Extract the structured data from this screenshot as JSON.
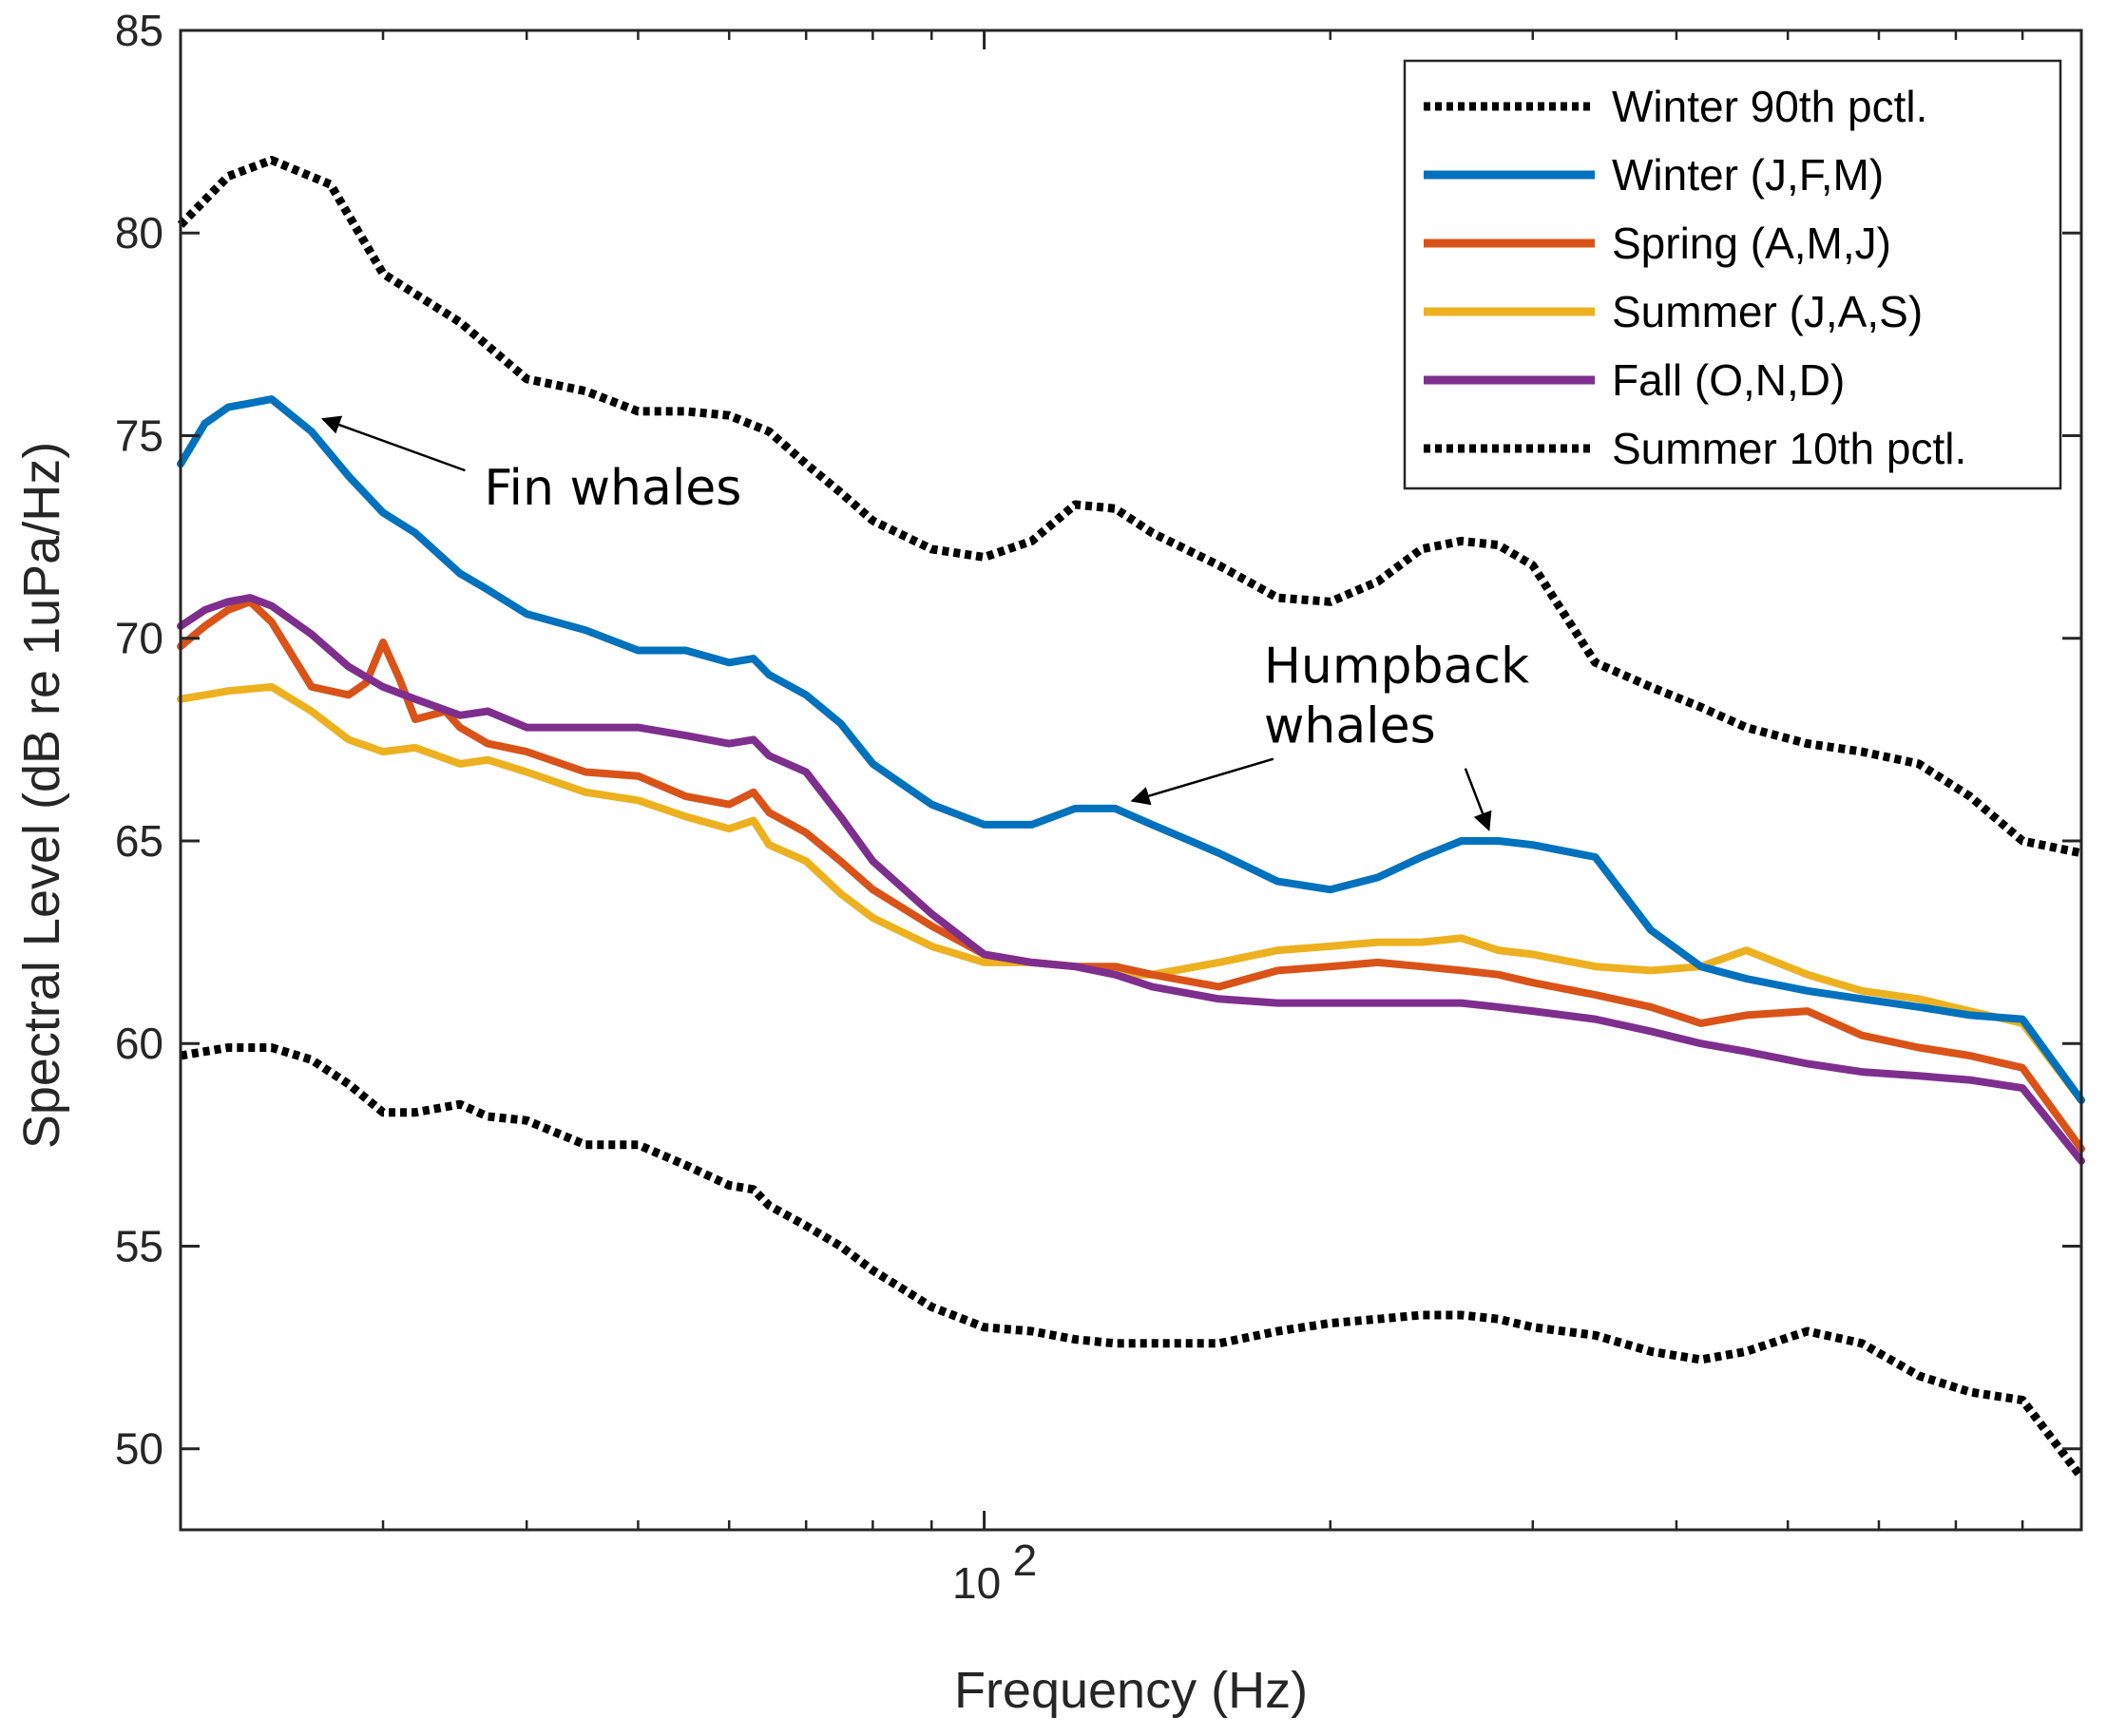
{
  "chart_data": {
    "type": "line",
    "title": "",
    "xlabel": "Frequency (Hz)",
    "ylabel": "Spectral Level (dB re 1uPa/Hz)",
    "xscale": "log",
    "xlim": [
      20,
      900
    ],
    "ylim": [
      48,
      85
    ],
    "grid": false,
    "legend_position": "top-right",
    "x_tick_labels": [
      {
        "value": 100,
        "base": "10",
        "exponent": "2"
      }
    ],
    "y_ticks": [
      50,
      55,
      60,
      65,
      70,
      75,
      80,
      85
    ],
    "colors": {
      "axes": "#262626",
      "black": "#000000",
      "winter": "#0072BD",
      "spring": "#D95319",
      "summer": "#EDB120",
      "fall": "#7E2F8E"
    },
    "series": [
      {
        "name": "Winter 90th pctl.",
        "style": "dotted",
        "color": "#000000",
        "x": [
          20,
          22,
          24,
          27,
          30,
          35,
          40,
          45,
          50,
          55,
          60,
          65,
          70,
          75,
          80,
          90,
          100,
          110,
          120,
          130,
          140,
          160,
          180,
          200,
          220,
          240,
          260,
          280,
          300,
          340,
          380,
          420,
          460,
          520,
          580,
          650,
          720,
          800,
          900
        ],
        "y": [
          80.2,
          81.4,
          81.8,
          81.2,
          79.0,
          77.8,
          76.4,
          76.1,
          75.6,
          75.6,
          75.5,
          75.1,
          74.3,
          73.6,
          72.9,
          72.2,
          72.0,
          72.4,
          73.3,
          73.2,
          72.6,
          71.8,
          71.0,
          70.9,
          71.4,
          72.2,
          72.4,
          72.3,
          71.8,
          69.4,
          68.8,
          68.3,
          67.8,
          67.4,
          67.2,
          66.9,
          66.1,
          65.0,
          64.7
        ]
      },
      {
        "name": "Winter (J,F,M)",
        "style": "solid",
        "color": "#0072BD",
        "x": [
          20,
          21,
          22,
          24,
          26,
          28,
          30,
          32,
          35,
          37,
          40,
          45,
          50,
          55,
          60,
          63,
          65,
          70,
          75,
          80,
          90,
          100,
          110,
          120,
          130,
          140,
          160,
          180,
          200,
          220,
          240,
          260,
          280,
          300,
          340,
          380,
          420,
          460,
          520,
          580,
          650,
          720,
          800,
          900
        ],
        "y": [
          74.3,
          75.3,
          75.7,
          75.9,
          75.1,
          74.0,
          73.1,
          72.6,
          71.6,
          71.2,
          70.6,
          70.2,
          69.7,
          69.7,
          69.4,
          69.5,
          69.1,
          68.6,
          67.9,
          66.9,
          65.9,
          65.4,
          65.4,
          65.8,
          65.8,
          65.4,
          64.7,
          64.0,
          63.8,
          64.1,
          64.6,
          65.0,
          65.0,
          64.9,
          64.6,
          62.8,
          61.9,
          61.6,
          61.3,
          61.1,
          60.9,
          60.7,
          60.6,
          58.6
        ]
      },
      {
        "name": "Spring (A,M,J)",
        "style": "solid",
        "color": "#D95319",
        "x": [
          20,
          21,
          22,
          23,
          24,
          26,
          28,
          29,
          30,
          31,
          32,
          34,
          35,
          37,
          40,
          45,
          50,
          55,
          60,
          63,
          65,
          70,
          75,
          80,
          90,
          100,
          110,
          120,
          130,
          140,
          160,
          180,
          200,
          220,
          240,
          260,
          280,
          300,
          340,
          380,
          420,
          460,
          520,
          580,
          650,
          720,
          800,
          900
        ],
        "y": [
          69.8,
          70.3,
          70.7,
          70.9,
          70.4,
          68.8,
          68.6,
          68.9,
          69.9,
          69.0,
          68.0,
          68.2,
          67.8,
          67.4,
          67.2,
          66.7,
          66.6,
          66.1,
          65.9,
          66.2,
          65.7,
          65.2,
          64.5,
          63.8,
          62.9,
          62.2,
          62.0,
          61.9,
          61.9,
          61.7,
          61.4,
          61.8,
          61.9,
          62.0,
          61.9,
          61.8,
          61.7,
          61.5,
          61.2,
          60.9,
          60.5,
          60.7,
          60.8,
          60.2,
          59.9,
          59.7,
          59.4,
          57.4
        ]
      },
      {
        "name": "Summer (J,A,S)",
        "style": "solid",
        "color": "#EDB120",
        "x": [
          20,
          21,
          22,
          24,
          26,
          28,
          30,
          32,
          35,
          37,
          40,
          45,
          50,
          55,
          60,
          63,
          65,
          70,
          75,
          80,
          90,
          100,
          110,
          120,
          130,
          140,
          160,
          180,
          200,
          220,
          240,
          260,
          280,
          300,
          340,
          380,
          420,
          460,
          520,
          580,
          650,
          720,
          800,
          900
        ],
        "y": [
          68.5,
          68.6,
          68.7,
          68.8,
          68.2,
          67.5,
          67.2,
          67.3,
          66.9,
          67.0,
          66.7,
          66.2,
          66.0,
          65.6,
          65.3,
          65.5,
          64.9,
          64.5,
          63.7,
          63.1,
          62.4,
          62.0,
          62.0,
          61.9,
          61.7,
          61.7,
          62.0,
          62.3,
          62.4,
          62.5,
          62.5,
          62.6,
          62.3,
          62.2,
          61.9,
          61.8,
          61.9,
          62.3,
          61.7,
          61.3,
          61.1,
          60.8,
          60.5,
          58.6
        ]
      },
      {
        "name": "Fall (O,N,D)",
        "style": "solid",
        "color": "#7E2F8E",
        "x": [
          20,
          21,
          22,
          23,
          24,
          26,
          28,
          30,
          32,
          35,
          37,
          40,
          45,
          50,
          55,
          60,
          63,
          65,
          70,
          75,
          80,
          90,
          100,
          110,
          120,
          130,
          140,
          160,
          180,
          200,
          220,
          240,
          260,
          280,
          300,
          340,
          380,
          420,
          460,
          520,
          580,
          650,
          720,
          800,
          900
        ],
        "y": [
          70.3,
          70.7,
          70.9,
          71.0,
          70.8,
          70.1,
          69.3,
          68.8,
          68.5,
          68.1,
          68.2,
          67.8,
          67.8,
          67.8,
          67.6,
          67.4,
          67.5,
          67.1,
          66.7,
          65.6,
          64.5,
          63.2,
          62.2,
          62.0,
          61.9,
          61.7,
          61.4,
          61.1,
          61.0,
          61.0,
          61.0,
          61.0,
          61.0,
          60.9,
          60.8,
          60.6,
          60.3,
          60.0,
          59.8,
          59.5,
          59.3,
          59.2,
          59.1,
          58.9,
          57.1
        ]
      },
      {
        "name": "Summer 10th pctl.",
        "style": "dotted",
        "color": "#000000",
        "x": [
          20,
          22,
          24,
          26,
          28,
          30,
          32,
          35,
          37,
          40,
          45,
          50,
          55,
          60,
          63,
          65,
          70,
          75,
          80,
          90,
          100,
          110,
          120,
          130,
          140,
          160,
          180,
          200,
          220,
          240,
          260,
          280,
          300,
          340,
          380,
          420,
          460,
          520,
          580,
          650,
          720,
          800,
          900
        ],
        "y": [
          59.7,
          59.9,
          59.9,
          59.6,
          59.0,
          58.3,
          58.3,
          58.5,
          58.2,
          58.1,
          57.5,
          57.5,
          57.0,
          56.5,
          56.4,
          56.0,
          55.5,
          55.0,
          54.4,
          53.5,
          53.0,
          52.9,
          52.7,
          52.6,
          52.6,
          52.6,
          52.9,
          53.1,
          53.2,
          53.3,
          53.3,
          53.2,
          53.0,
          52.8,
          52.4,
          52.2,
          52.4,
          52.9,
          52.6,
          51.8,
          51.4,
          51.2,
          49.3
        ]
      }
    ],
    "annotations": [
      {
        "text": "Fin whales",
        "x": 50,
        "y": 74,
        "target": {
          "x": 26,
          "y": 75.6
        }
      },
      {
        "text": "Humpback\nwhales",
        "x": 220,
        "y": 68.9,
        "targets": [
          {
            "x": 130,
            "y": 65.8
          },
          {
            "x": 280,
            "y": 65.0
          }
        ]
      }
    ]
  }
}
